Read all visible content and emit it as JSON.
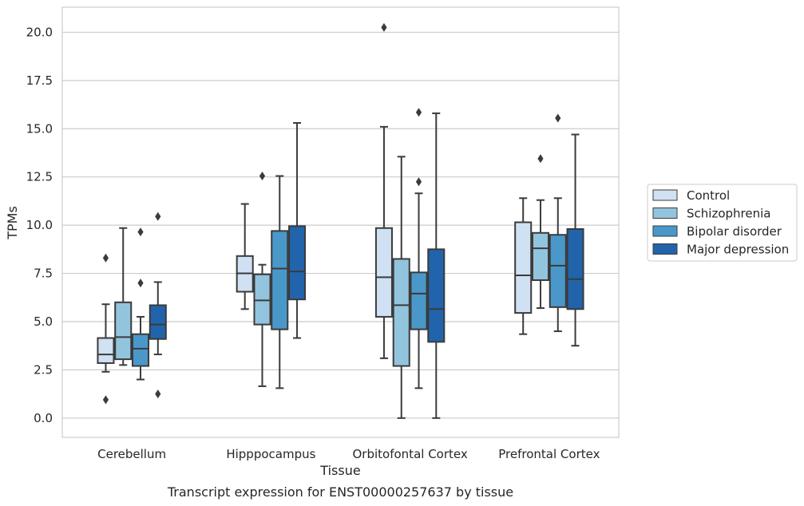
{
  "chart_data": {
    "type": "box",
    "xlabel": "Tissue",
    "ylabel": "TPMs",
    "caption": "Transcript expression for ENST00000257637 by tissue",
    "categories": [
      "Cerebellum",
      "Hipppocampus",
      "Orbitofontal Cortex",
      "Prefrontal Cortex"
    ],
    "ylim": [
      -1.0,
      21.3
    ],
    "yticks": [
      0.0,
      2.5,
      5.0,
      7.5,
      10.0,
      12.5,
      15.0,
      17.5,
      20.0
    ],
    "ytick_labels": [
      "0.0",
      "2.5",
      "5.0",
      "7.5",
      "10.0",
      "12.5",
      "15.0",
      "17.5",
      "20.0"
    ],
    "grid": "horizontal",
    "legend_position": "right",
    "series": [
      {
        "name": "Control",
        "color": "#cfe1f2",
        "boxes": [
          {
            "whisker_low": 2.4,
            "q1": 2.85,
            "median": 3.3,
            "q3": 4.15,
            "whisker_high": 5.9,
            "outliers": [
              8.3,
              0.95
            ]
          },
          {
            "whisker_low": 5.65,
            "q1": 6.55,
            "median": 7.5,
            "q3": 8.4,
            "whisker_high": 11.1,
            "outliers": []
          },
          {
            "whisker_low": 3.1,
            "q1": 5.25,
            "median": 7.3,
            "q3": 9.85,
            "whisker_high": 15.1,
            "outliers": [
              20.25
            ]
          },
          {
            "whisker_low": 4.35,
            "q1": 5.45,
            "median": 7.4,
            "q3": 10.15,
            "whisker_high": 11.4,
            "outliers": []
          }
        ]
      },
      {
        "name": "Schizophrenia",
        "color": "#93c4de",
        "boxes": [
          {
            "whisker_low": 2.75,
            "q1": 3.05,
            "median": 4.2,
            "q3": 6.0,
            "whisker_high": 9.85,
            "outliers": []
          },
          {
            "whisker_low": 1.65,
            "q1": 4.85,
            "median": 6.1,
            "q3": 7.45,
            "whisker_high": 7.95,
            "outliers": [
              12.55
            ]
          },
          {
            "whisker_low": 0.0,
            "q1": 2.7,
            "median": 5.85,
            "q3": 8.25,
            "whisker_high": 13.55,
            "outliers": []
          },
          {
            "whisker_low": 5.7,
            "q1": 7.15,
            "median": 8.8,
            "q3": 9.6,
            "whisker_high": 11.3,
            "outliers": [
              13.45
            ]
          }
        ]
      },
      {
        "name": "Bipolar disorder",
        "color": "#4a98c9",
        "boxes": [
          {
            "whisker_low": 2.0,
            "q1": 2.7,
            "median": 3.6,
            "q3": 4.35,
            "whisker_high": 5.25,
            "outliers": [
              9.65,
              7.0
            ]
          },
          {
            "whisker_low": 1.55,
            "q1": 4.6,
            "median": 7.75,
            "q3": 9.7,
            "whisker_high": 12.55,
            "outliers": []
          },
          {
            "whisker_low": 1.55,
            "q1": 4.6,
            "median": 6.45,
            "q3": 7.55,
            "whisker_high": 11.65,
            "outliers": [
              15.85,
              12.25
            ]
          },
          {
            "whisker_low": 4.5,
            "q1": 5.75,
            "median": 7.9,
            "q3": 9.5,
            "whisker_high": 11.4,
            "outliers": [
              15.55
            ]
          }
        ]
      },
      {
        "name": "Major depression",
        "color": "#2164ab",
        "boxes": [
          {
            "whisker_low": 3.3,
            "q1": 4.1,
            "median": 4.85,
            "q3": 5.85,
            "whisker_high": 7.05,
            "outliers": [
              10.45,
              1.25
            ]
          },
          {
            "whisker_low": 4.15,
            "q1": 6.15,
            "median": 7.6,
            "q3": 9.95,
            "whisker_high": 15.3,
            "outliers": []
          },
          {
            "whisker_low": 0.0,
            "q1": 3.95,
            "median": 5.65,
            "q3": 8.75,
            "whisker_high": 15.8,
            "outliers": []
          },
          {
            "whisker_low": 3.75,
            "q1": 5.65,
            "median": 7.2,
            "q3": 9.8,
            "whisker_high": 14.7,
            "outliers": []
          }
        ]
      }
    ]
  }
}
